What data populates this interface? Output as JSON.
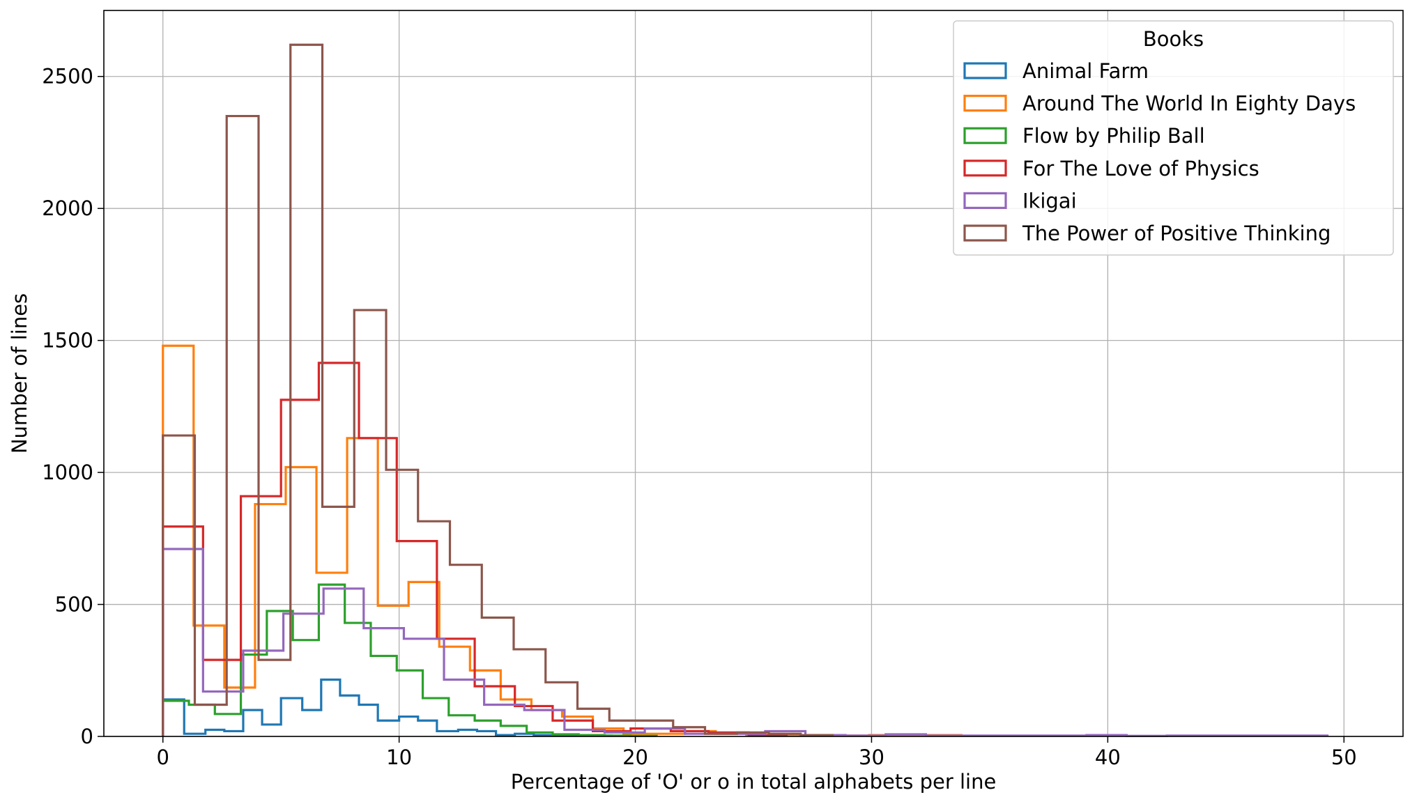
{
  "chart_data": {
    "type": "histogram-step",
    "xlabel": "Percentage of 'O' or o in total alphabets per line",
    "ylabel": "Number of lines",
    "xlim": [
      -2.5,
      52.5
    ],
    "ylim": [
      0,
      2750
    ],
    "xticks": [
      0,
      10,
      20,
      30,
      40,
      50
    ],
    "yticks": [
      0,
      500,
      1000,
      1500,
      2000,
      2500
    ],
    "grid": true,
    "legend": {
      "title": "Books",
      "placement": "top-right"
    },
    "series": [
      {
        "name": "Animal Farm",
        "color": "#1f77b4",
        "bin_edges": [
          0,
          0.9,
          1.8,
          2.6,
          3.4,
          4.2,
          5.0,
          5.9,
          6.7,
          7.5,
          8.3,
          9.1,
          10.0,
          10.8,
          11.6,
          12.5,
          13.3,
          14.1,
          14.9,
          15.7,
          16.6,
          17.4,
          18.2,
          19.0
        ],
        "values": [
          140,
          10,
          25,
          20,
          100,
          45,
          145,
          100,
          215,
          155,
          120,
          60,
          75,
          60,
          20,
          25,
          20,
          5,
          10,
          5,
          5,
          3,
          3
        ]
      },
      {
        "name": "Around The World In Eighty Days",
        "color": "#ff7f0e",
        "bin_edges": [
          0,
          1.3,
          2.6,
          3.9,
          5.2,
          6.5,
          7.8,
          9.1,
          10.4,
          11.7,
          13.0,
          14.3,
          15.6,
          16.9,
          18.2,
          19.5,
          20.8,
          22.1,
          23.4,
          24.7,
          26.0,
          27.3,
          28.6,
          29.9,
          31.2,
          32.5,
          33.8
        ],
        "values": [
          1480,
          420,
          185,
          880,
          1020,
          620,
          1130,
          495,
          585,
          340,
          250,
          140,
          100,
          75,
          30,
          10,
          10,
          20,
          10,
          5,
          5,
          5,
          3,
          5,
          5,
          5
        ]
      },
      {
        "name": "Flow by Philip Ball",
        "color": "#2ca02c",
        "bin_edges": [
          0,
          1.1,
          2.2,
          3.3,
          4.4,
          5.5,
          6.6,
          7.7,
          8.8,
          9.9,
          11.0,
          12.1,
          13.2,
          14.3,
          15.4,
          16.5,
          17.6,
          18.7,
          19.8,
          20.9
        ],
        "values": [
          135,
          120,
          85,
          310,
          475,
          365,
          575,
          430,
          305,
          250,
          145,
          80,
          60,
          40,
          15,
          8,
          5,
          3,
          2
        ]
      },
      {
        "name": "For The Love of Physics",
        "color": "#d62728",
        "bin_edges": [
          0,
          1.7,
          3.3,
          5.0,
          6.6,
          8.3,
          9.9,
          11.6,
          13.2,
          14.9,
          16.5,
          18.2,
          19.8,
          21.5,
          23.1,
          24.8,
          26.4
        ],
        "values": [
          795,
          290,
          910,
          1275,
          1415,
          1130,
          740,
          370,
          190,
          115,
          60,
          20,
          30,
          20,
          15,
          5
        ]
      },
      {
        "name": "Ikigai",
        "color": "#9467bd",
        "bin_edges": [
          0,
          1.7,
          3.4,
          5.1,
          6.8,
          8.5,
          10.2,
          11.9,
          13.6,
          15.3,
          17.0,
          18.7,
          20.4,
          22.1,
          23.8,
          25.5,
          27.2,
          28.9,
          30.6,
          32.3,
          34.0,
          35.7,
          37.4,
          39.1,
          40.8,
          42.5,
          44.2,
          45.9,
          47.6,
          49.3
        ],
        "values": [
          710,
          170,
          325,
          465,
          560,
          410,
          370,
          215,
          120,
          100,
          25,
          15,
          30,
          10,
          10,
          20,
          5,
          3,
          8,
          3,
          3,
          3,
          3,
          5,
          2,
          3,
          3,
          3,
          3
        ]
      },
      {
        "name": "The Power of Positive Thinking",
        "color": "#8c564b",
        "bin_edges": [
          0,
          1.35,
          2.7,
          4.05,
          5.4,
          6.75,
          8.1,
          9.45,
          10.8,
          12.15,
          13.5,
          14.85,
          16.2,
          17.55,
          18.9,
          20.25,
          21.6,
          22.95,
          24.3,
          25.65,
          27.0,
          28.35
        ],
        "values": [
          1140,
          120,
          2350,
          290,
          2620,
          870,
          1615,
          1010,
          815,
          650,
          450,
          330,
          205,
          105,
          60,
          60,
          35,
          10,
          15,
          10,
          5
        ]
      }
    ]
  }
}
